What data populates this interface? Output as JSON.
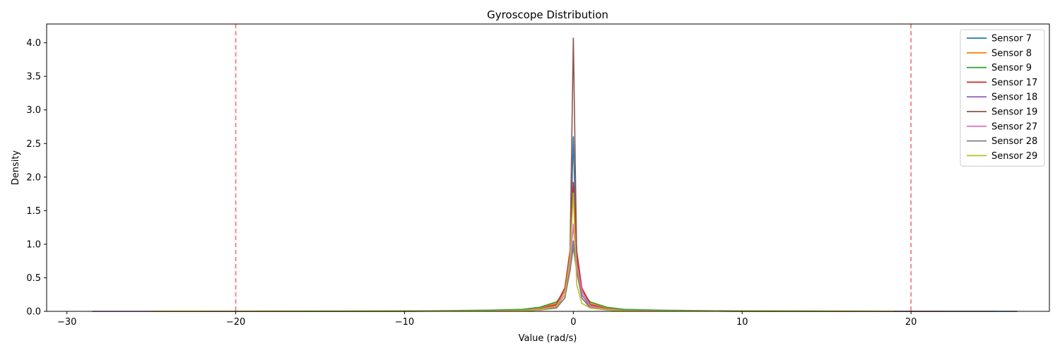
{
  "chart_data": {
    "type": "line",
    "title": "Gyroscope Distribution",
    "xlabel": "Value (rad/s)",
    "ylabel": "Density",
    "xlim": [
      -31.2,
      28.2
    ],
    "ylim": [
      0,
      4.28
    ],
    "xticks": [
      -30,
      -20,
      -10,
      0,
      10,
      20
    ],
    "xtick_labels": [
      "−30",
      "−20",
      "−10",
      "0",
      "10",
      "20"
    ],
    "yticks": [
      0,
      0.5,
      1.0,
      1.5,
      2.0,
      2.5,
      3.0,
      3.5,
      4.0
    ],
    "ytick_labels": [
      "0.0",
      "0.5",
      "1.0",
      "1.5",
      "2.0",
      "2.5",
      "3.0",
      "3.5",
      "4.0"
    ],
    "grid": false,
    "legend_position": "top-right",
    "reference_lines": [
      {
        "x": -20,
        "color": "#f08080",
        "style": "dashed"
      },
      {
        "x": 20,
        "color": "#f08080",
        "style": "dashed"
      }
    ],
    "series": [
      {
        "name": "Sensor 7",
        "color": "#1f77b4",
        "x": [
          -28.5,
          -20,
          -10,
          -5,
          -3,
          -2,
          -1,
          -0.5,
          -0.2,
          0,
          0.2,
          0.5,
          1,
          2,
          3,
          5,
          10,
          20,
          26.3
        ],
        "y": [
          0,
          0,
          0.003,
          0.01,
          0.02,
          0.04,
          0.1,
          0.3,
          0.8,
          2.6,
          0.8,
          0.3,
          0.1,
          0.04,
          0.02,
          0.01,
          0.003,
          0,
          0
        ]
      },
      {
        "name": "Sensor 8",
        "color": "#ff7f0e",
        "x": [
          -25,
          -20,
          -10,
          -5,
          -3,
          -2,
          -1,
          -0.5,
          -0.2,
          0,
          0.2,
          0.5,
          1,
          2,
          3,
          5,
          10,
          20,
          24
        ],
        "y": [
          0,
          0,
          0.003,
          0.01,
          0.02,
          0.05,
          0.12,
          0.35,
          0.8,
          1.25,
          0.8,
          0.35,
          0.12,
          0.05,
          0.02,
          0.01,
          0.003,
          0,
          0
        ]
      },
      {
        "name": "Sensor 9",
        "color": "#2ca02c",
        "x": [
          -25,
          -20,
          -10,
          -7,
          -5,
          -3,
          -2,
          -1,
          -0.5,
          -0.2,
          0,
          0.2,
          0.5,
          1,
          2,
          3,
          5,
          10,
          20,
          25
        ],
        "y": [
          0,
          0.002,
          0.006,
          0.012,
          0.018,
          0.03,
          0.06,
          0.14,
          0.3,
          0.6,
          1.05,
          0.6,
          0.3,
          0.14,
          0.06,
          0.03,
          0.018,
          0.006,
          0.002,
          0
        ]
      },
      {
        "name": "Sensor 17",
        "color": "#d62728",
        "x": [
          -22,
          -20,
          -10,
          -5,
          -3,
          -2,
          -1,
          -0.5,
          -0.2,
          0,
          0.2,
          0.5,
          1,
          2,
          3,
          5,
          10,
          20,
          22
        ],
        "y": [
          0,
          0,
          0.002,
          0.008,
          0.015,
          0.03,
          0.1,
          0.35,
          0.9,
          1.92,
          0.9,
          0.35,
          0.1,
          0.03,
          0.015,
          0.008,
          0.002,
          0,
          0
        ]
      },
      {
        "name": "Sensor 18",
        "color": "#9467bd",
        "x": [
          -22,
          -20,
          -10,
          -5,
          -3,
          -2,
          -1,
          -0.5,
          -0.2,
          0,
          0.2,
          0.5,
          1,
          2,
          3,
          5,
          10,
          20,
          22
        ],
        "y": [
          0,
          0,
          0.002,
          0.006,
          0.012,
          0.025,
          0.07,
          0.25,
          0.6,
          1.05,
          0.6,
          0.25,
          0.07,
          0.025,
          0.012,
          0.006,
          0.002,
          0,
          0
        ]
      },
      {
        "name": "Sensor 19",
        "color": "#8c564b",
        "x": [
          -22,
          -20,
          -10,
          -5,
          -3,
          -2,
          -1,
          -0.5,
          -0.2,
          0,
          0.2,
          0.5,
          1,
          2,
          3,
          5,
          10,
          20,
          22
        ],
        "y": [
          0,
          0,
          0.002,
          0.006,
          0.012,
          0.02,
          0.05,
          0.2,
          0.8,
          4.07,
          0.8,
          0.2,
          0.05,
          0.02,
          0.012,
          0.006,
          0.002,
          0,
          0
        ]
      },
      {
        "name": "Sensor 27",
        "color": "#e377c2",
        "x": [
          -28.5,
          -20,
          -10,
          -5,
          -3,
          -2,
          -1,
          -0.5,
          -0.2,
          0,
          0.2,
          0.5,
          1,
          2,
          3,
          5,
          10,
          20,
          25
        ],
        "y": [
          0,
          0,
          0.002,
          0.008,
          0.015,
          0.03,
          0.08,
          0.3,
          0.7,
          1.3,
          0.7,
          0.3,
          0.08,
          0.03,
          0.015,
          0.008,
          0.002,
          0,
          0
        ]
      },
      {
        "name": "Sensor 28",
        "color": "#7f7f7f",
        "x": [
          -22,
          -20,
          -10,
          -5,
          -3,
          -2,
          -1,
          -0.5,
          -0.2,
          0,
          0.2,
          0.5,
          1,
          2,
          3,
          5,
          10,
          20,
          26.3
        ],
        "y": [
          0,
          0,
          0.002,
          0.005,
          0.01,
          0.02,
          0.06,
          0.2,
          0.6,
          0.95,
          0.6,
          0.2,
          0.06,
          0.02,
          0.01,
          0.005,
          0.002,
          0,
          0
        ]
      },
      {
        "name": "Sensor 29",
        "color": "#bcbd22",
        "x": [
          -25,
          -20,
          -10,
          -5,
          -3,
          -2,
          -1,
          -0.5,
          -0.2,
          0,
          0.2,
          0.5,
          1,
          2,
          3,
          5,
          10,
          19
        ],
        "y": [
          0,
          0,
          0.002,
          0.006,
          0.012,
          0.025,
          0.07,
          0.25,
          0.8,
          1.76,
          0.4,
          0.12,
          0.05,
          0.02,
          0.01,
          0.005,
          0.002,
          0
        ]
      }
    ]
  }
}
